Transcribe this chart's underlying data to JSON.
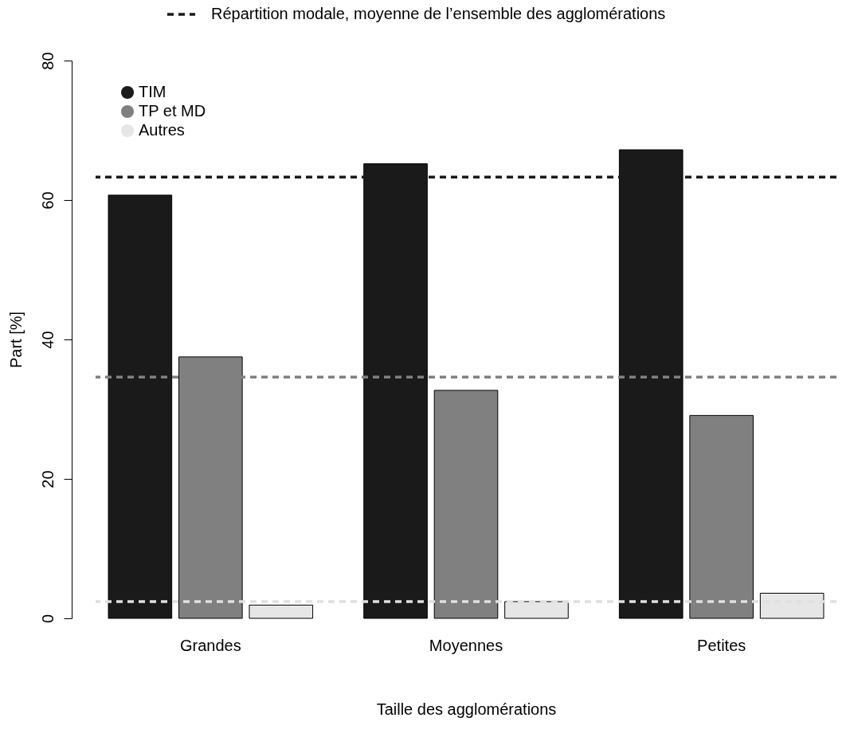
{
  "chart_data": {
    "type": "bar",
    "xlabel": "Taille des agglomérations",
    "ylabel": "Part [%]",
    "categories": [
      "Grandes",
      "Moyennes",
      "Petites"
    ],
    "series": [
      {
        "name": "TIM",
        "color": "#1a1a1a",
        "values": [
          60.7,
          65.2,
          67.2
        ]
      },
      {
        "name": "TP et MD",
        "color": "#808080",
        "values": [
          37.5,
          32.7,
          29.1
        ]
      },
      {
        "name": "Autres",
        "color": "#e6e6e6",
        "values": [
          1.9,
          2.4,
          3.6
        ]
      }
    ],
    "ylim": [
      0,
      80
    ],
    "yticks": [
      0,
      20,
      40,
      60,
      80
    ],
    "grid": false,
    "legend": "top left",
    "ref_lines": [
      {
        "axis": "y",
        "value": 63.3,
        "label": "Répartition modale, moyenne de l’ensemble des agglomérations",
        "color": "#1a1a1a",
        "line_style": "dashed"
      },
      {
        "axis": "y",
        "value": 34.6,
        "label": null,
        "color": "#808080",
        "line_style": "dashed"
      },
      {
        "axis": "y",
        "value": 2.4,
        "label": null,
        "color": "#e0e0e0",
        "line_style": "dashed"
      }
    ]
  }
}
